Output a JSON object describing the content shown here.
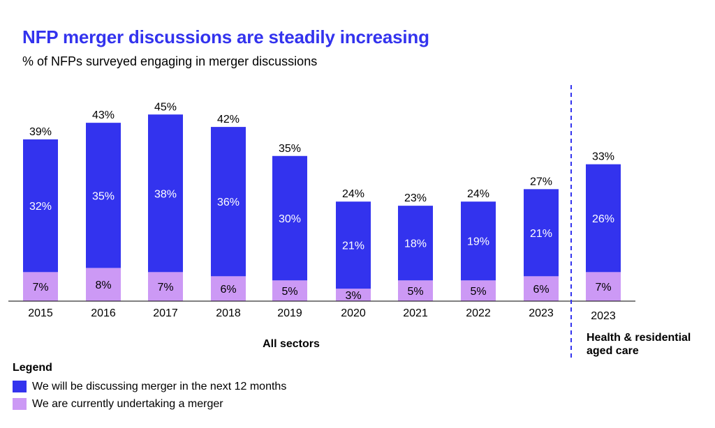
{
  "title": "NFP merger discussions are steadily increasing",
  "subtitle": "% of NFPs surveyed engaging in merger discussions",
  "colors": {
    "discussing": "#3333ee",
    "undertaking": "#cc99f5",
    "divider": "#3333ee",
    "axis": "#000000"
  },
  "chart_data": {
    "type": "bar",
    "stacked": true,
    "categories": [
      "2015",
      "2016",
      "2017",
      "2018",
      "2019",
      "2020",
      "2021",
      "2022",
      "2023",
      "2023"
    ],
    "series": [
      {
        "name": "We are currently undertaking a merger",
        "values": [
          7,
          8,
          7,
          6,
          5,
          3,
          5,
          5,
          6,
          7
        ],
        "labels": [
          "7%",
          "8%",
          "7%",
          "6%",
          "5%",
          "3%",
          "5%",
          "5%",
          "6%",
          "7%"
        ]
      },
      {
        "name": "We will be discussing merger in the next 12 months",
        "values": [
          32,
          35,
          38,
          36,
          30,
          21,
          18,
          19,
          21,
          26
        ],
        "labels": [
          "32%",
          "35%",
          "38%",
          "36%",
          "30%",
          "21%",
          "18%",
          "19%",
          "21%",
          "26%"
        ]
      }
    ],
    "totals": [
      39,
      43,
      45,
      42,
      35,
      24,
      23,
      24,
      27,
      33
    ],
    "total_labels": [
      "39%",
      "43%",
      "45%",
      "42%",
      "35%",
      "24%",
      "23%",
      "24%",
      "27%",
      "33%"
    ],
    "groups": [
      {
        "label": "All sectors",
        "category_count": 9
      },
      {
        "label": "Health & residential aged care",
        "category_count": 1
      }
    ],
    "group_label_lines": [
      [
        "All sectors"
      ],
      [
        "Health & residential",
        "aged care"
      ]
    ],
    "ylim": [
      0,
      45
    ],
    "grid": false,
    "legend_position": "bottom-left"
  },
  "legend": {
    "title": "Legend",
    "items": [
      {
        "label": "We will be discussing merger in the next 12 months",
        "color": "#3333ee"
      },
      {
        "label": "We are currently undertaking a merger",
        "color": "#cc99f5"
      }
    ]
  }
}
